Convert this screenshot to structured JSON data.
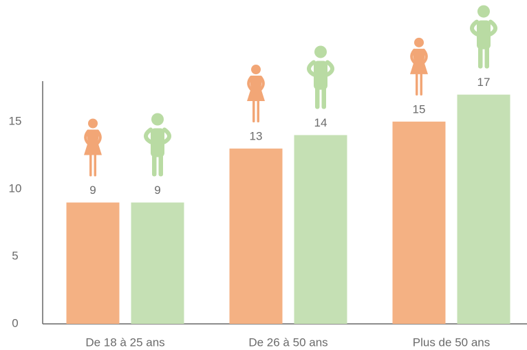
{
  "chart_data": {
    "type": "bar",
    "categories": [
      "De 18 à 25 ans",
      "De 26 à 50 ans",
      "Plus de 50 ans"
    ],
    "series": [
      {
        "color": "#f4b183",
        "values": [
          9,
          13,
          15
        ]
      },
      {
        "color": "#c5e0b4",
        "values": [
          9,
          14,
          17
        ]
      }
    ],
    "ylim": [
      0,
      18
    ],
    "yticks": [
      0,
      5,
      10,
      15
    ],
    "grid": false
  }
}
